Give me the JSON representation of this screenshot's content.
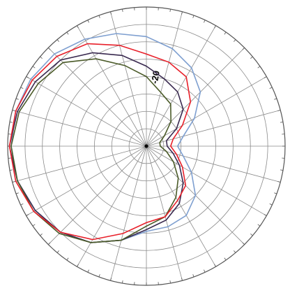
{
  "chart_data": {
    "type": "polar",
    "theta": [
      0,
      15,
      30,
      45,
      60,
      75,
      90,
      105,
      120,
      135,
      150,
      165,
      180,
      195,
      210,
      225,
      240,
      255,
      270,
      285,
      300,
      315,
      330,
      345
    ],
    "rlim": [
      -40,
      0
    ],
    "rgrid": [
      -35,
      -30,
      -25,
      -20,
      -15,
      -10,
      -5
    ],
    "rticks": [
      -20
    ],
    "rlabel_angle": 8,
    "spoke_step": 15,
    "rim_tick_step": 5,
    "grid_color": "#8a8a8a",
    "series": [
      {
        "color": "#7e9fd0",
        "values": [
          -8.5,
          -11,
          -14,
          -18,
          -24,
          -29,
          -31,
          -29,
          -25,
          -20,
          -17,
          -16,
          -15.5,
          -12,
          -8,
          -5,
          -3,
          -1.5,
          -1,
          -1,
          -1.5,
          -2.5,
          -4.5,
          -6.5
        ]
      },
      {
        "color": "#3a2a50",
        "values": [
          -17,
          -20,
          -22,
          -25,
          -30,
          -34,
          -34,
          -32,
          -29,
          -25,
          -21,
          -18,
          -16,
          -12,
          -8,
          -5,
          -3,
          -1.5,
          -0.5,
          -1.5,
          -3,
          -5,
          -9,
          -13
        ]
      },
      {
        "color": "#4a5a28",
        "values": [
          -20,
          -24,
          -26,
          -30,
          -34,
          -36,
          -36,
          -34,
          -31,
          -27,
          -23,
          -19,
          -17,
          -12,
          -8,
          -4.5,
          -2.5,
          -1.5,
          -1,
          -2,
          -4,
          -6,
          -11,
          -16
        ]
      },
      {
        "color": "#e8202a",
        "values": [
          -13.5,
          -15,
          -17,
          -22,
          -28,
          -32,
          -33,
          -31,
          -28,
          -24,
          -22,
          -19,
          -18,
          -14,
          -9,
          -5,
          -2.5,
          -1,
          -0.5,
          -1,
          -2,
          -3.5,
          -6,
          -10
        ]
      }
    ]
  }
}
